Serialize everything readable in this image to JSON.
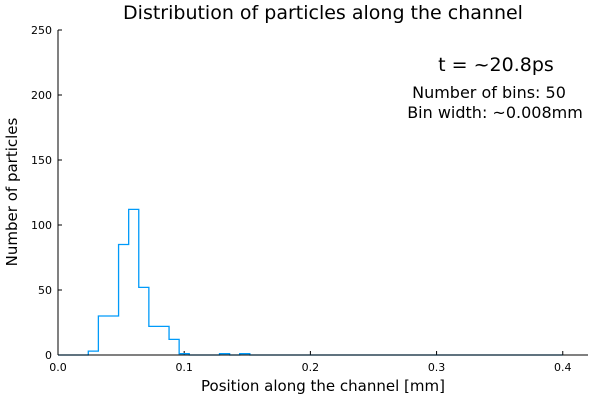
{
  "chart_data": {
    "type": "bar",
    "title": "Distribution of particles along the channel",
    "xlabel": "Position along the channel [mm]",
    "ylabel": "Number of particles",
    "xlim": [
      0.0,
      0.42
    ],
    "ylim": [
      0,
      250
    ],
    "xticks": [
      {
        "value": 0.0,
        "label": "0.0"
      },
      {
        "value": 0.1,
        "label": "0.1"
      },
      {
        "value": 0.2,
        "label": "0.2"
      },
      {
        "value": 0.3,
        "label": "0.3"
      },
      {
        "value": 0.4,
        "label": "0.4"
      }
    ],
    "yticks": [
      {
        "value": 0,
        "label": "0"
      },
      {
        "value": 50,
        "label": "50"
      },
      {
        "value": 100,
        "label": "100"
      },
      {
        "value": 150,
        "label": "150"
      },
      {
        "value": 200,
        "label": "200"
      },
      {
        "value": 250,
        "label": "250"
      }
    ],
    "annotations": {
      "time": "t = ~20.8ps",
      "bins": "Number of bins: 50",
      "width": "Bin width: ~0.008mm"
    },
    "series_color": "#009af9",
    "grid": false,
    "legend": "none",
    "bin_edges": [
      0.0,
      0.008,
      0.016,
      0.024,
      0.032,
      0.04,
      0.048,
      0.056,
      0.064,
      0.072,
      0.08,
      0.088,
      0.096,
      0.104,
      0.112,
      0.12,
      0.128,
      0.136,
      0.144,
      0.152,
      0.16,
      0.168,
      0.176,
      0.184,
      0.192,
      0.2,
      0.208,
      0.216,
      0.224,
      0.232,
      0.24,
      0.248,
      0.256,
      0.264,
      0.272,
      0.28,
      0.288,
      0.296,
      0.304,
      0.312,
      0.32,
      0.328,
      0.336,
      0.344,
      0.352,
      0.36,
      0.368,
      0.376,
      0.384,
      0.392,
      0.4
    ],
    "counts": [
      0,
      0,
      0,
      3,
      30,
      30,
      85,
      112,
      52,
      22,
      22,
      12,
      1,
      0,
      0,
      0,
      1,
      0,
      1,
      0,
      0,
      0,
      0,
      0,
      0,
      0,
      0,
      0,
      0,
      0,
      0,
      0,
      0,
      0,
      0,
      0,
      0,
      0,
      0,
      0,
      0,
      0,
      0,
      0,
      0,
      0,
      0,
      0,
      0,
      0
    ]
  }
}
